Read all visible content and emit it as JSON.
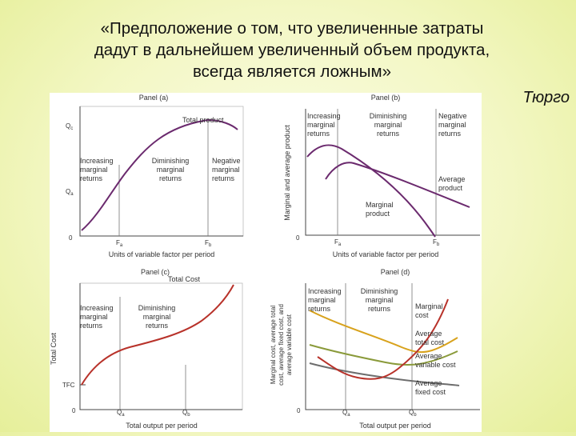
{
  "quote": {
    "line1": "«Предположение о том, что увеличенные затраты",
    "line2": "дадут в дальнейшем увеличенный объем продукта,",
    "line3": "всегда является ложным»",
    "author": "Тюрго"
  },
  "figure": {
    "panel_a": {
      "title": "Panel (a)",
      "curve_label": "Total product",
      "stage1": [
        "Increasing",
        "marginal",
        "returns"
      ],
      "stage2": [
        "Diminishing",
        "marginal",
        "returns"
      ],
      "stage3": [
        "Negative",
        "marginal",
        "returns"
      ],
      "y_tick_top": "Q",
      "y_tick_top_sub": "c",
      "y_tick_mid": "Q",
      "y_tick_mid_sub": "a",
      "origin": "0",
      "x_tick1": "F",
      "x_tick1_sub": "a",
      "x_tick2": "F",
      "x_tick2_sub": "b",
      "xlabel": "Units of variable factor per period"
    },
    "panel_b": {
      "title": "Panel (b)",
      "ylabel": "Marginal and average product",
      "stage1": [
        "Increasing",
        "marginal",
        "returns"
      ],
      "stage2": [
        "Diminishing",
        "marginal",
        "returns"
      ],
      "stage3": [
        "Negative",
        "marginal",
        "returns"
      ],
      "avg_label": [
        "Average",
        "product"
      ],
      "mp_label": [
        "Marginal",
        "product"
      ],
      "origin": "0",
      "x_tick1": "F",
      "x_tick1_sub": "a",
      "x_tick2": "F",
      "x_tick2_sub": "b",
      "xlabel": "Units of variable factor per period"
    },
    "panel_c": {
      "title": "Panel (c)",
      "curve_label": "Total Cost",
      "ylabel": "Total Cost",
      "stage1": [
        "Increasing",
        "marginal",
        "returns"
      ],
      "stage2": [
        "Diminishing",
        "marginal",
        "returns"
      ],
      "y_tick": "TFC",
      "origin": "0",
      "x_tick1": "Q",
      "x_tick1_sub": "a",
      "x_tick2": "Q",
      "x_tick2_sub": "b",
      "xlabel": "Total output per period"
    },
    "panel_d": {
      "title": "Panel (d)",
      "ylabel": [
        "Marginal cost, average total",
        "cost, average fixed cost, and",
        "average variable cost"
      ],
      "stage1": [
        "Increasing",
        "marginal",
        "returns"
      ],
      "stage2": [
        "Diminishing",
        "marginal",
        "returns"
      ],
      "mc_label": [
        "Marginal",
        "cost"
      ],
      "atc_label": [
        "Average",
        "total cost"
      ],
      "avc_label": [
        "Average",
        "variable cost"
      ],
      "afc_label": [
        "Average",
        "fixed cost"
      ],
      "origin": "0",
      "x_tick1": "Q",
      "x_tick1_sub": "a",
      "x_tick2": "Q",
      "x_tick2_sub": "b",
      "xlabel": "Total output per period"
    },
    "colors": {
      "purple": "#6b2a6e",
      "red": "#b8322a",
      "gold": "#d8a21c",
      "olive": "#8a9a3a",
      "gray": "#6d6d6d"
    }
  }
}
